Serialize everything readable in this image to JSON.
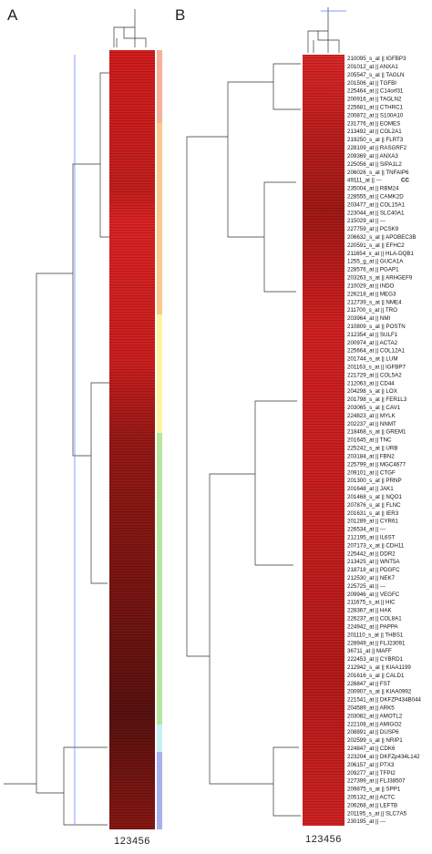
{
  "panels": [
    {
      "label": "A",
      "columns": "123456"
    },
    {
      "label": "B",
      "columns": "123456",
      "note": "CC",
      "rows": [
        "210095_s_at || IGFBP3",
        "201012_at || ANXA1",
        "205547_s_at || TAGLN",
        "201506_at || TGFBI",
        "225464_at || C14orf31",
        "200916_at || TAGLN2",
        "225681_at || CTHRC1",
        "200872_at || S100A10",
        "231776_at || EOMES",
        "213492_at || COL2A1",
        "219250_s_at || FLRT3",
        "228109_at || RASGRF2",
        "209369_at || ANXA3",
        "225056_at || SIPA1L2",
        "206026_s_at || TNFAIP6",
        "49111_at || ---",
        "235004_at || RBM24",
        "228555_at || CAMK2D",
        "203477_at || COL15A1",
        "223044_at || SLC40A1",
        "215029_at || ---",
        "227759_at || PCSK9",
        "206632_s_at || APOBEC3B",
        "220591_s_at || EFHC2",
        "211654_x_at || HLA-DQB1",
        "1255_g_at || GUCA1A",
        "228576_at || PGAP1",
        "203263_s_at || ARHGEF9",
        "210029_at || INDO",
        "226218_at || MEG3",
        "212739_s_at || NME4",
        "211700_s_at || TRO",
        "203964_at || NMI",
        "210809_s_at || POSTN",
        "212354_at || SULF1",
        "200974_at || ACTA2",
        "225664_at || COL12A1",
        "201744_s_at || LUM",
        "201163_s_at || IGFBP7",
        "221729_at || COL5A2",
        "212063_at || CD44",
        "204298_s_at || LOX",
        "201798_s_at || FER1L3",
        "203065_s_at || CAV1",
        "224823_at || MYLK",
        "202237_at || NNMT",
        "218468_s_at || GREM1",
        "201645_at || TNC",
        "225242_s_at || URB",
        "203184_at || FBN2",
        "225799_at || MGC4677",
        "209101_at || CTGF",
        "201300_s_at || PRNP",
        "201648_at || JAK1",
        "201468_s_at || NQO1",
        "207876_s_at || FLNC",
        "201631_s_at || IER3",
        "201289_at || CYR61",
        "226534_at || ---",
        "212195_at || IL6ST",
        "207173_x_at || CDH11",
        "225442_at || DDR2",
        "213425_at || WNT5A",
        "218718_at || PDGFC",
        "212530_at || NEK7",
        "225725_at || ---",
        "209946_at || VEGFC",
        "211675_s_at || HIC",
        "228367_at || HAK",
        "226237_at || COL8A1",
        "224942_at || PAPPA",
        "201110_s_at || THBS1",
        "228949_at || FLJ23091",
        "36711_at || MAFF",
        "222453_at || CYBRD1",
        "212942_s_at || KIAA1199",
        "201616_s_at || CALD1",
        "226847_at || FST",
        "200907_s_at || KIAA0992",
        "221541_at || DKFZP434B044",
        "204589_at || ARK5",
        "203082_at || AMOTL2",
        "222108_at || AMIGO2",
        "208891_at || DUSP6",
        "202599_s_at || NRIP1",
        "224847_at || CDK6",
        "223204_at || DKFZp434L142",
        "206157_at || PTX3",
        "209277_at || TFPI2",
        "227399_at || FLJ38507",
        "209875_s_at || SPP1",
        "205132_at || ACTC",
        "206268_at || LEFTB",
        "201195_s_at || SLC7A5",
        "230195_at || ---"
      ]
    }
  ]
}
